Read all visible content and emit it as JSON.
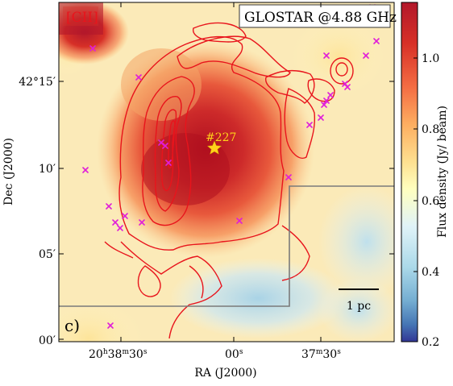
{
  "panel": {
    "tag": "[CII]",
    "survey_label": "GLOSTAR @4.88 GHz",
    "panel_letter": "c)",
    "source_label": "#227",
    "scalebar_label": "1 pc"
  },
  "axes": {
    "xlabel": "RA (J2000)",
    "ylabel": "Dec (J2000)",
    "x_ticks": [
      {
        "text": "20h38m30s"
      },
      {
        "text": "00s"
      },
      {
        "text": "37m30s"
      }
    ],
    "y_ticks": [
      {
        "text": "42°15′"
      },
      {
        "text": "10′"
      },
      {
        "text": "05′"
      },
      {
        "text": "00′"
      }
    ]
  },
  "colorbar": {
    "label": "Flux density (Jy/ beam)",
    "range": [
      0.2,
      1.15
    ],
    "ticks": [
      "1.0",
      "0.8",
      "0.6",
      "0.4",
      "0.2"
    ],
    "colormap": "RdYlBu_r"
  },
  "colors": {
    "contour": "#e8141c",
    "cross_marker": "#e01ed8",
    "star": "#ffd21a",
    "box_outline": "#7a7a7a",
    "tag_text": "#e8141c"
  }
}
